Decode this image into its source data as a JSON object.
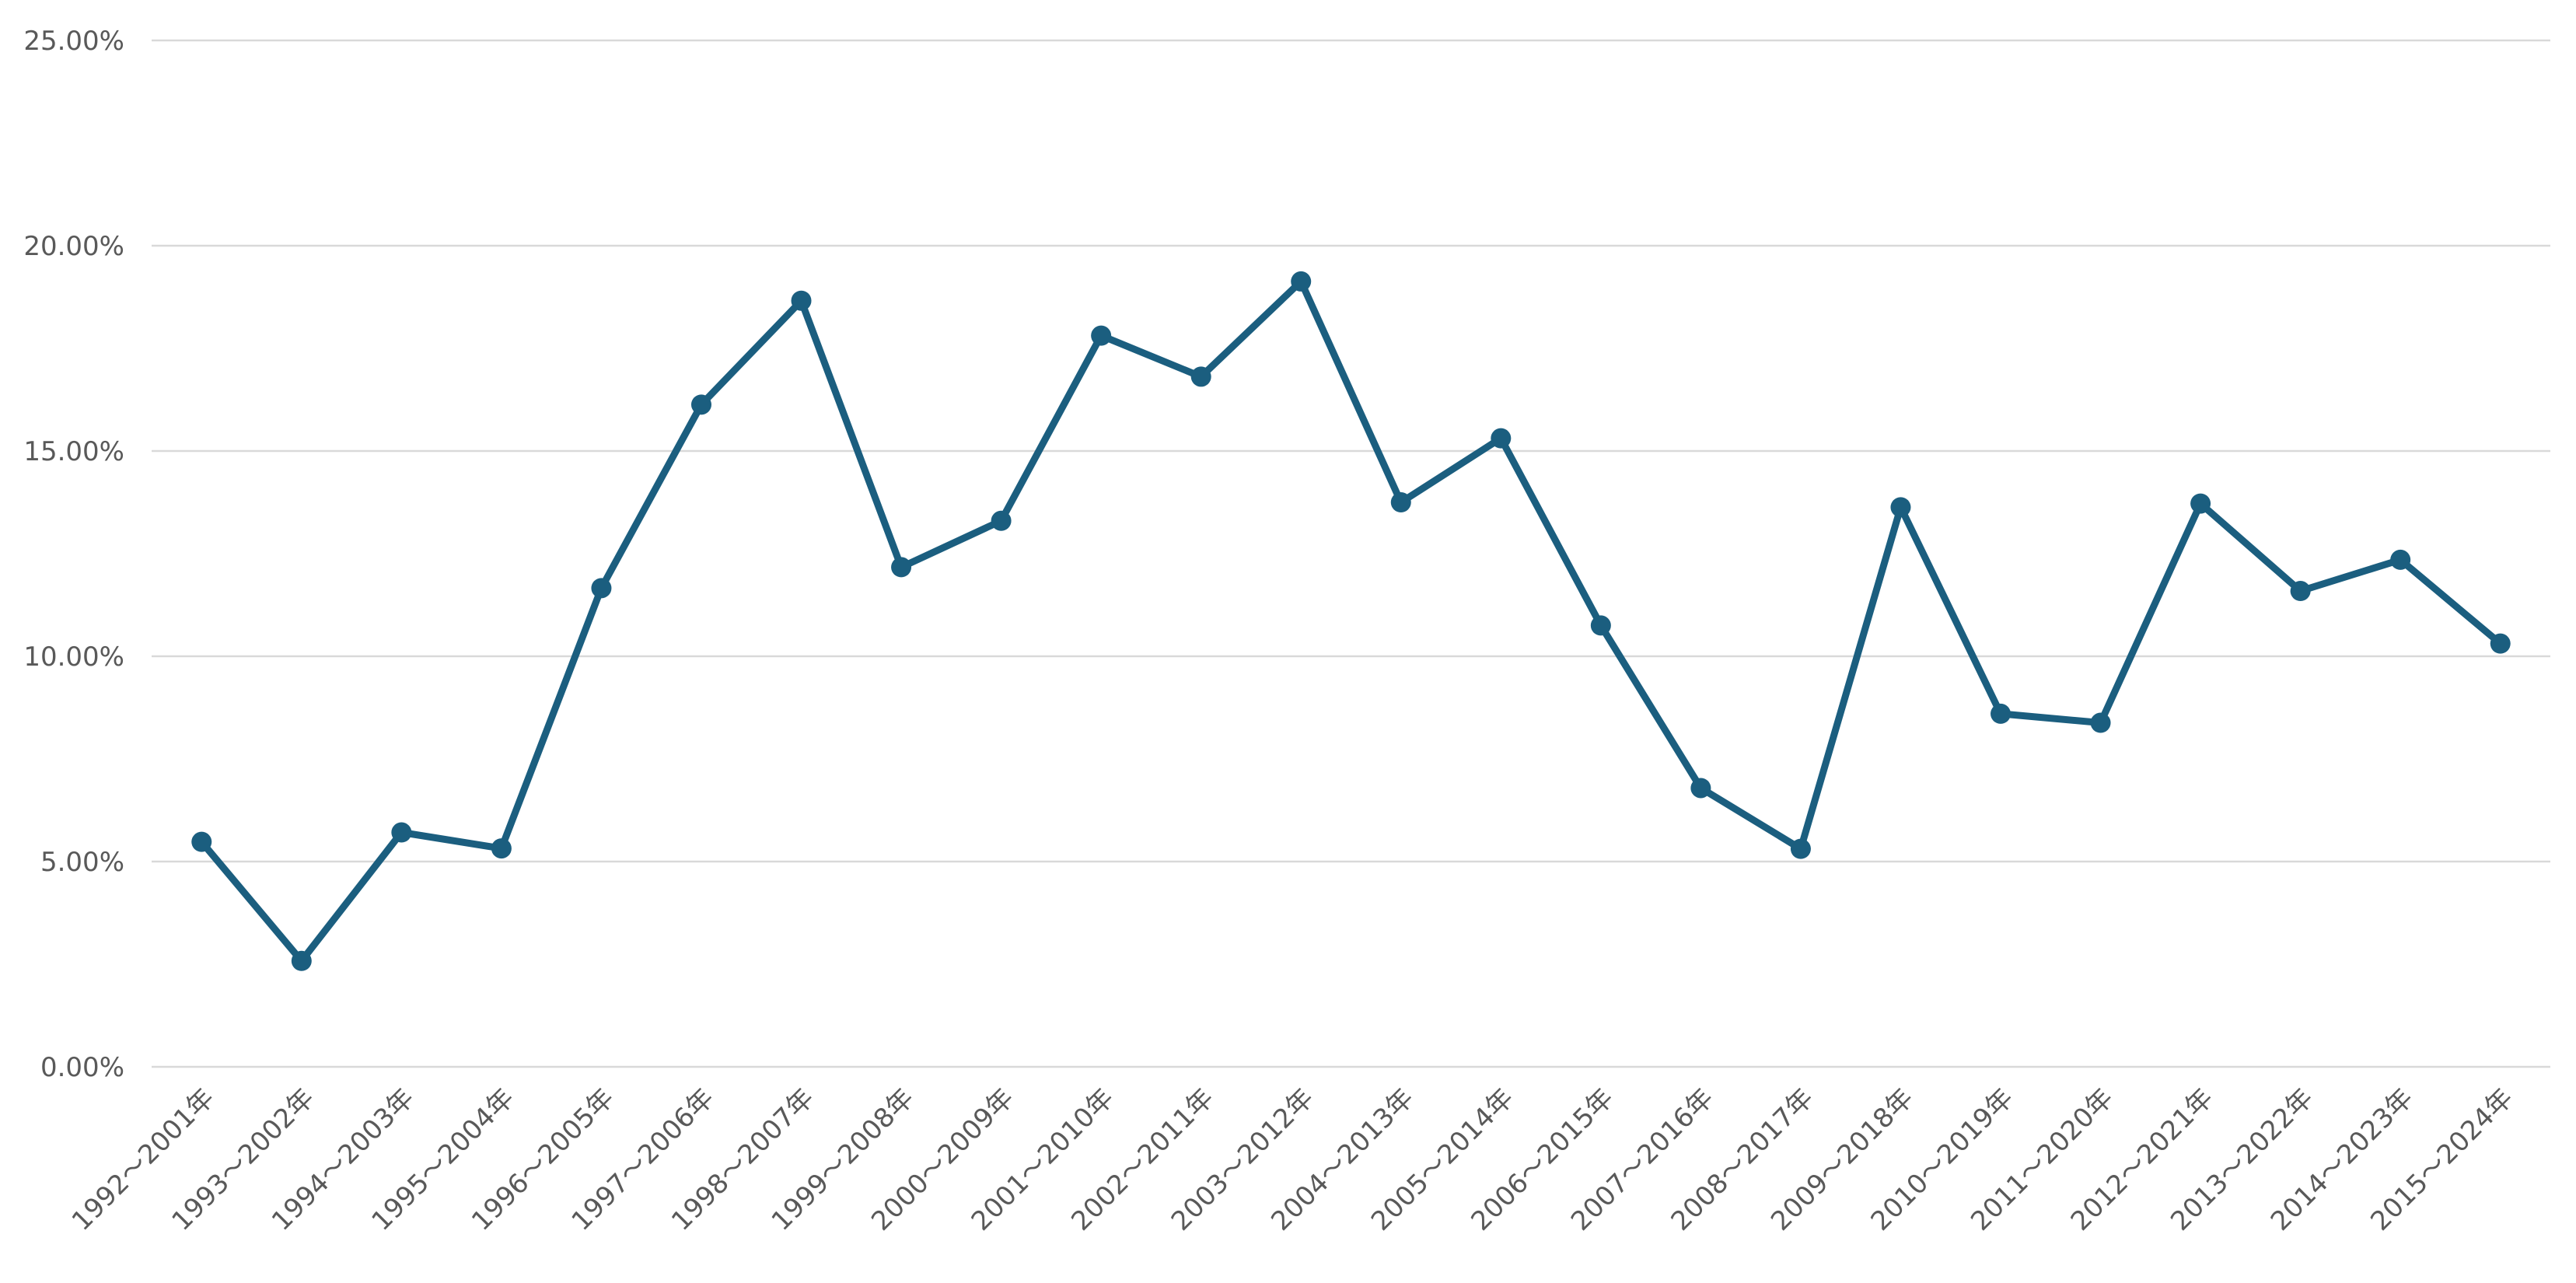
{
  "chart_data": {
    "type": "line",
    "title": "",
    "xlabel": "",
    "ylabel": "",
    "ylim": [
      0,
      0.25
    ],
    "y_ticks": [
      "0.00%",
      "5.00%",
      "10.00%",
      "15.00%",
      "20.00%",
      "25.00%"
    ],
    "grid": true,
    "legend": "none",
    "colors": {
      "series": "#1b5e7f",
      "grid": "#d9d9d9",
      "text": "#595959"
    },
    "categories": [
      "1992～2001年",
      "1993～2002年",
      "1994～2003年",
      "1995～2004年",
      "1996～2005年",
      "1997～2006年",
      "1998～2007年",
      "1999～2008年",
      "2000～2009年",
      "2001～2010年",
      "2002～2011年",
      "2003～2012年",
      "2004～2013年",
      "2005～2014年",
      "2006～2015年",
      "2007～2016年",
      "2008～2017年",
      "2009～2018年",
      "2010～2019年",
      "2011～2020年",
      "2012～2021年",
      "2013～2022年",
      "2014～2023年",
      "2015～2024年"
    ],
    "series": [
      {
        "values": [
          0.0548,
          0.0258,
          0.0571,
          0.0532,
          0.1166,
          0.1613,
          0.1866,
          0.1217,
          0.133,
          0.1781,
          0.1681,
          0.1913,
          0.1375,
          0.1531,
          0.1075,
          0.0679,
          0.0531,
          0.1363,
          0.086,
          0.0838,
          0.1372,
          0.1159,
          0.1235,
          0.1031
        ]
      }
    ]
  }
}
